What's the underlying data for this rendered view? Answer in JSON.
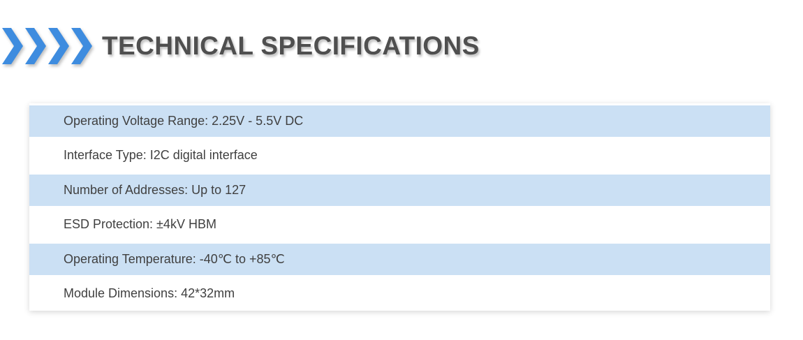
{
  "header": {
    "title": "TECHNICAL SPECIFICATIONS",
    "title_color": "#4F4F4F",
    "chevrons": {
      "icon": "right-chevrons-icon",
      "count": 4,
      "color": "#3E8CDF"
    }
  },
  "spec_table": {
    "rows": [
      {
        "text": "Operating Voltage Range: 2.25V - 5.5V DC",
        "highlighted": true
      },
      {
        "text": "Interface Type: I2C digital interface",
        "highlighted": false
      },
      {
        "text": "Number of Addresses: Up to 127",
        "highlighted": true
      },
      {
        "text": "ESD Protection: ±4kV HBM",
        "highlighted": false
      },
      {
        "text": "Operating Temperature: -40℃ to +85℃",
        "highlighted": true
      },
      {
        "text": "Module Dimensions: 42*32mm",
        "highlighted": false
      }
    ],
    "colors": {
      "highlight_row_bg": "#CBE0F4",
      "plain_row_bg": "#FFFFFF",
      "text": "#404040"
    }
  }
}
